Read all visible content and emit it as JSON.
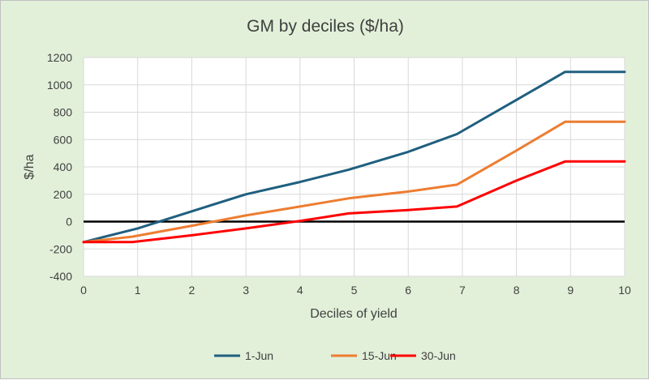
{
  "chart_data": {
    "type": "line",
    "title": "GM by deciles ($/ha)",
    "xlabel": "Deciles of yield",
    "ylabel": "$/ha",
    "xlim": [
      0,
      10
    ],
    "ylim": [
      -400,
      1200
    ],
    "x_ticks": [
      "0",
      "1",
      "2",
      "3",
      "4",
      "5",
      "6",
      "7",
      "8",
      "9",
      "10"
    ],
    "y_ticks": [
      "-400",
      "-200",
      "0",
      "200",
      "400",
      "600",
      "800",
      "1000",
      "1200"
    ],
    "grid": true,
    "zero_line": true,
    "legend_position": "bottom",
    "series": [
      {
        "name": "1-Jun",
        "color": "#1f5f7f",
        "points": [
          [
            0,
            -150
          ],
          [
            1,
            -50
          ],
          [
            2,
            75
          ],
          [
            3,
            200
          ],
          [
            4,
            290
          ],
          [
            4.9,
            380
          ],
          [
            6,
            510
          ],
          [
            6.9,
            640
          ],
          [
            8,
            890
          ],
          [
            8.9,
            1095
          ],
          [
            10,
            1095
          ]
        ]
      },
      {
        "name": "15-Jun",
        "color": "#ed7d31",
        "points": [
          [
            0,
            -150
          ],
          [
            0.9,
            -110
          ],
          [
            2,
            -30
          ],
          [
            3,
            45
          ],
          [
            4,
            110
          ],
          [
            4.9,
            170
          ],
          [
            6,
            220
          ],
          [
            6.9,
            270
          ],
          [
            8,
            520
          ],
          [
            8.9,
            730
          ],
          [
            10,
            730
          ]
        ]
      },
      {
        "name": "30-Jun",
        "color": "#ff0000",
        "points": [
          [
            0,
            -150
          ],
          [
            0.9,
            -150
          ],
          [
            2,
            -100
          ],
          [
            3,
            -50
          ],
          [
            4,
            5
          ],
          [
            4.9,
            60
          ],
          [
            6,
            85
          ],
          [
            6.9,
            110
          ],
          [
            8,
            300
          ],
          [
            8.9,
            440
          ],
          [
            10,
            440
          ]
        ]
      }
    ]
  }
}
